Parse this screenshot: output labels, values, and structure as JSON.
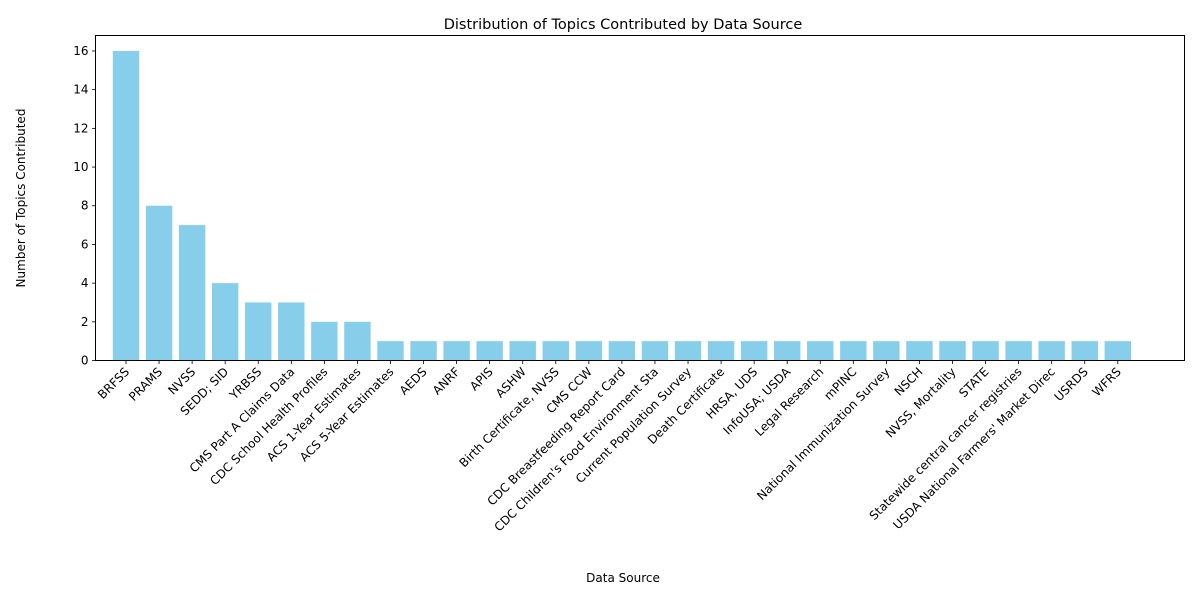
{
  "chart_data": {
    "type": "bar",
    "title": "Distribution of Topics Contributed by Data Source",
    "xlabel": "Data Source",
    "ylabel": "Number of Topics Contributed",
    "ylim": [
      0,
      16.8
    ],
    "yticks": [
      0,
      2,
      4,
      6,
      8,
      10,
      12,
      14,
      16
    ],
    "bar_color": "#87CEEB",
    "grid": false,
    "categories": [
      "BRFSS",
      "PRAMS",
      "NVSS",
      "SEDD; SID",
      "YRBSS",
      "CMS Part A Claims Data",
      "CDC School Health Profiles",
      "ACS 1-Year Estimates",
      "ACS 5-Year Estimates",
      "AEDS",
      "ANRF",
      "APIS",
      "ASHW",
      "Birth Certificate, NVSS",
      "CMS CCW",
      "CDC Breastfeeding Report Card",
      "CDC Children's Food Environment Sta",
      "Current Population Survey",
      "Death Certificate",
      "HRSA, UDS",
      "InfoUSA; USDA",
      "Legal Research",
      "mPINC",
      "National Immunization Survey",
      "NSCH",
      "NVSS, Mortality",
      "STATE",
      "Statewide central cancer registries",
      "USDA National Farmers' Market Direc",
      "USRDS",
      "WFRS"
    ],
    "values": [
      16,
      8,
      7,
      4,
      3,
      3,
      2,
      2,
      1,
      1,
      1,
      1,
      1,
      1,
      1,
      1,
      1,
      1,
      1,
      1,
      1,
      1,
      1,
      1,
      1,
      1,
      1,
      1,
      1,
      1,
      1
    ]
  }
}
